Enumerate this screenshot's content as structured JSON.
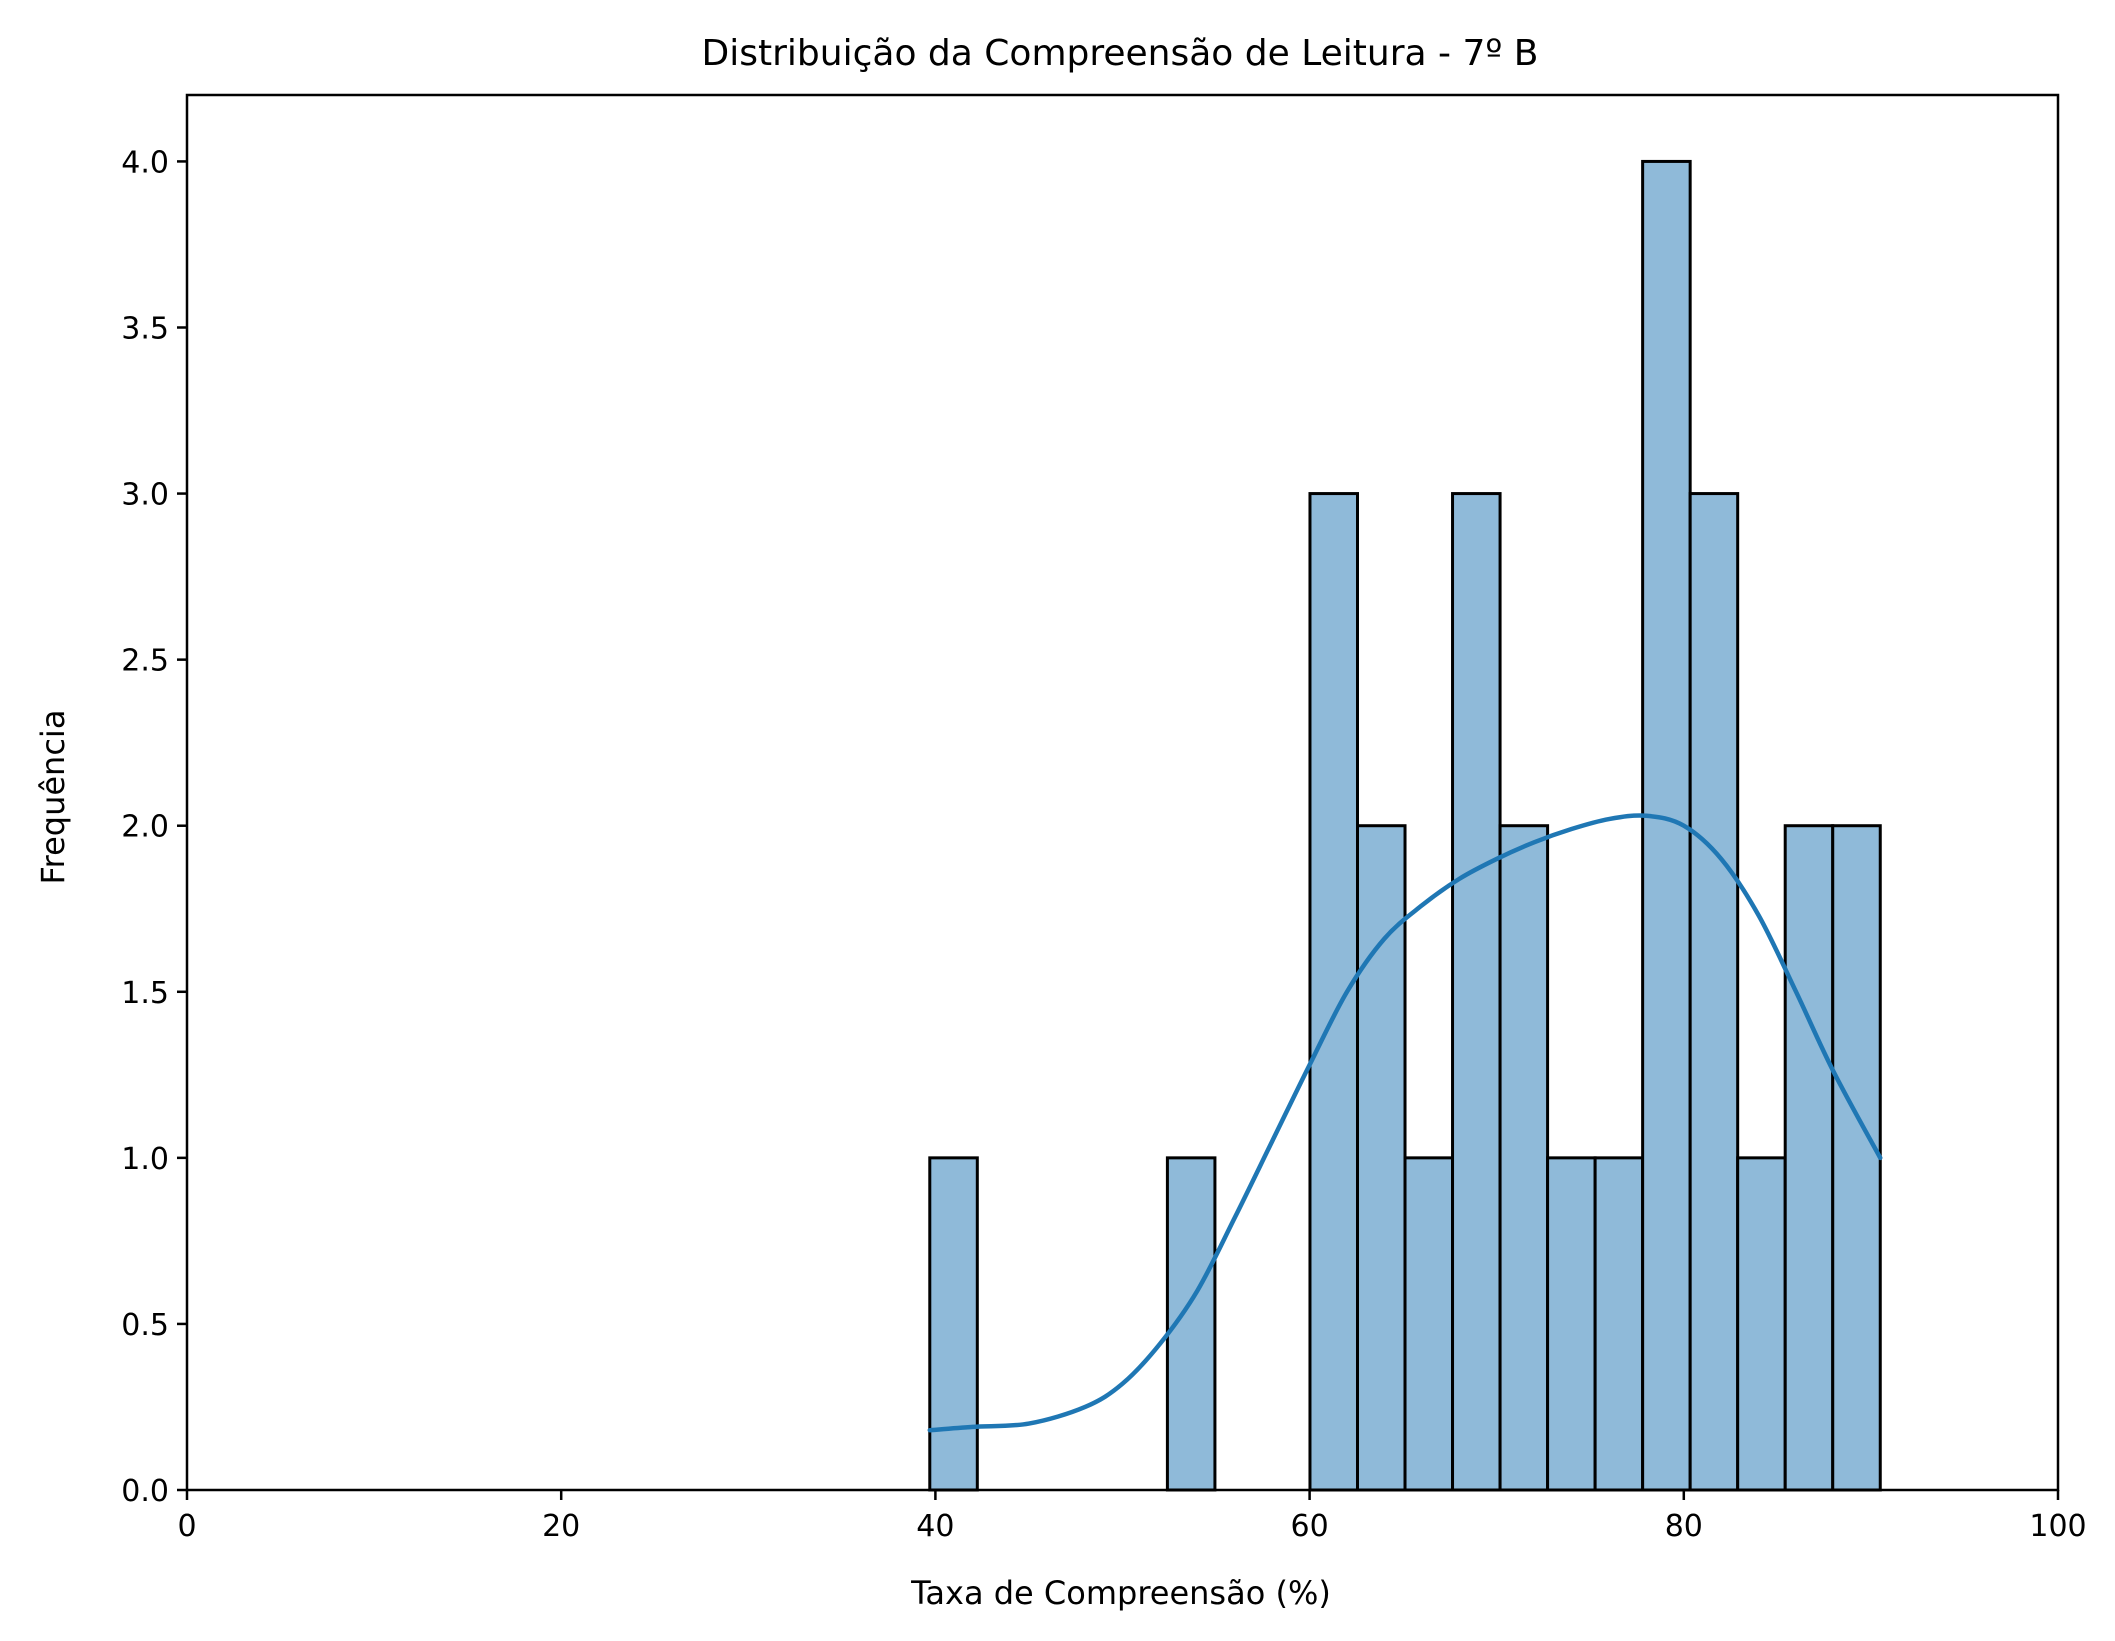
{
  "chart_data": {
    "type": "bar",
    "title": "Distribuição da Compreensão de Leitura - 7º B",
    "xlabel": "Taxa de Compreensão (%)",
    "ylabel": "Frequência",
    "xlim": [
      0,
      100
    ],
    "ylim": [
      0,
      4.2
    ],
    "x_ticks": [
      "0",
      "20",
      "40",
      "60",
      "80",
      "100"
    ],
    "y_ticks": [
      "0.0",
      "0.5",
      "1.0",
      "1.5",
      "2.0",
      "2.5",
      "3.0",
      "3.5",
      "4.0"
    ],
    "grid": false,
    "legend": "none",
    "bins": [
      {
        "start": 39.7,
        "end": 42.24,
        "count": 1
      },
      {
        "start": 42.24,
        "end": 44.78,
        "count": 0
      },
      {
        "start": 44.78,
        "end": 47.32,
        "count": 0
      },
      {
        "start": 47.32,
        "end": 49.86,
        "count": 0
      },
      {
        "start": 49.86,
        "end": 52.4,
        "count": 0
      },
      {
        "start": 52.4,
        "end": 54.94,
        "count": 1
      },
      {
        "start": 54.94,
        "end": 57.48,
        "count": 0
      },
      {
        "start": 57.48,
        "end": 60.02,
        "count": 0
      },
      {
        "start": 60.02,
        "end": 62.56,
        "count": 3
      },
      {
        "start": 62.56,
        "end": 65.1,
        "count": 2
      },
      {
        "start": 65.1,
        "end": 67.64,
        "count": 1
      },
      {
        "start": 67.64,
        "end": 70.18,
        "count": 3
      },
      {
        "start": 70.18,
        "end": 72.72,
        "count": 2
      },
      {
        "start": 72.72,
        "end": 75.26,
        "count": 1
      },
      {
        "start": 75.26,
        "end": 77.8,
        "count": 1
      },
      {
        "start": 77.8,
        "end": 80.34,
        "count": 4
      },
      {
        "start": 80.34,
        "end": 82.88,
        "count": 3
      },
      {
        "start": 82.88,
        "end": 85.42,
        "count": 1
      },
      {
        "start": 85.42,
        "end": 87.96,
        "count": 2
      },
      {
        "start": 87.96,
        "end": 90.5,
        "count": 2
      }
    ],
    "kde": {
      "x": [
        39.7,
        42,
        45,
        48,
        50,
        52,
        54,
        56,
        58,
        60,
        62,
        64,
        66,
        68,
        70,
        72,
        74,
        76,
        78,
        80,
        82,
        84,
        86,
        88,
        90.5
      ],
      "y": [
        0.18,
        0.19,
        0.2,
        0.25,
        0.32,
        0.44,
        0.6,
        0.82,
        1.05,
        1.28,
        1.5,
        1.66,
        1.76,
        1.84,
        1.9,
        1.95,
        1.99,
        2.02,
        2.03,
        2.0,
        1.9,
        1.73,
        1.5,
        1.26,
        1.0
      ]
    },
    "colors": {
      "bar_fill": "#8fbad9",
      "bar_edge": "#000000",
      "kde_line": "#1f77b4"
    }
  }
}
